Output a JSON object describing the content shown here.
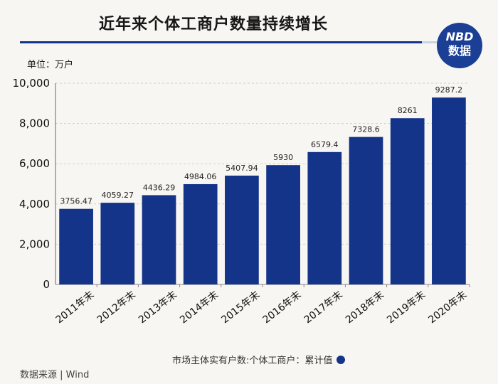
{
  "header": {
    "title": "近年来个体工商户数量持续增长",
    "logo_line1": "NBD",
    "logo_line2": "数据"
  },
  "unit_label": "单位：万户",
  "legend_label": "市场主体实有户数:个体工商户：累计值",
  "source_label": "数据来源 | Wind",
  "colors": {
    "bar": "#143489",
    "accent": "#143489",
    "logo": "#1c3f96",
    "background": "#f8f6f2"
  },
  "chart_data": {
    "type": "bar",
    "title": "近年来个体工商户数量持续增长",
    "xlabel": "",
    "ylabel": "万户",
    "categories": [
      "2011年末",
      "2012年末",
      "2013年末",
      "2014年末",
      "2015年末",
      "2016年末",
      "2017年末",
      "2018年末",
      "2019年末",
      "2020年末"
    ],
    "values": [
      3756.47,
      4059.27,
      4436.29,
      4984.06,
      5407.94,
      5930,
      6579.4,
      7328.6,
      8261,
      9287.2
    ],
    "value_labels": [
      "3756.47",
      "4059.27",
      "4436.29",
      "4984.06",
      "5407.94",
      "5930",
      "6579.4",
      "7328.6",
      "8261",
      "9287.2"
    ],
    "yticks": [
      0,
      2000,
      4000,
      6000,
      8000,
      10000
    ],
    "ytick_labels": [
      "0",
      "2,000",
      "4,000",
      "6,000",
      "8,000",
      "10,000"
    ],
    "ylim": [
      0,
      10000
    ],
    "grid": true,
    "series": [
      {
        "name": "市场主体实有户数:个体工商户：累计值",
        "values": [
          3756.47,
          4059.27,
          4436.29,
          4984.06,
          5407.94,
          5930,
          6579.4,
          7328.6,
          8261,
          9287.2
        ]
      }
    ]
  }
}
